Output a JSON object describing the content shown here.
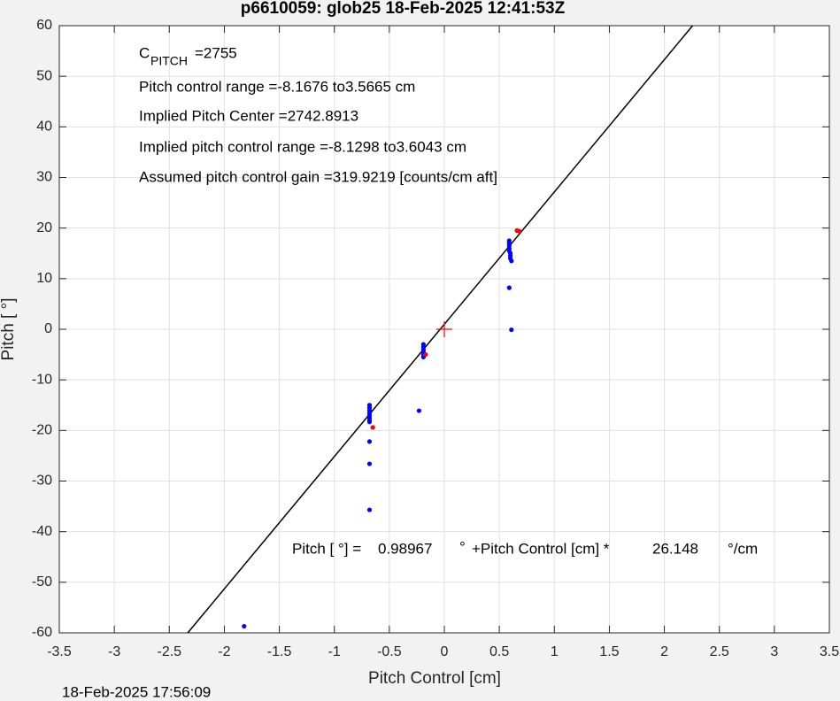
{
  "chart_data": {
    "type": "scatter",
    "title": "p6610059: glob25 18-Feb-2025 12:41:53Z",
    "x_label": "Pitch Control [cm]",
    "y_label": "Pitch [  °]",
    "timestamp": "18-Feb-2025 17:56:09",
    "xlim": [
      -3.5,
      3.5
    ],
    "ylim": [
      -60,
      60
    ],
    "xticks": [
      -3.5,
      -3,
      -2.5,
      -2,
      -1.5,
      -1,
      -0.5,
      0,
      0.5,
      1,
      1.5,
      2,
      2.5,
      3,
      3.5
    ],
    "yticks": [
      -60,
      -50,
      -40,
      -30,
      -20,
      -10,
      0,
      10,
      20,
      30,
      40,
      50,
      60
    ],
    "grid": true,
    "annotations": {
      "c_symbol": "C",
      "c_subscript": "PITCH",
      "c_value": " =2755",
      "lines": [
        "Pitch control range =-8.1676 to3.5665 cm",
        "Implied Pitch Center =2742.8913",
        "Implied pitch control range =-8.1298 to3.6043 cm",
        "Assumed pitch control gain =319.9219 [counts/cm aft]"
      ]
    },
    "fit": {
      "prefix": "Pitch [  °] =",
      "intercept": 0.98967,
      "middle_degree": "°",
      "middle": "+Pitch Control [cm] *",
      "slope": 26.148,
      "suffix": "°/cm",
      "color": "#000000"
    },
    "series": [
      {
        "color": "#0000ff",
        "marker": "dot",
        "x": [
          -0.68,
          -0.68,
          -0.68,
          -0.68,
          -0.68,
          -0.68,
          -0.68,
          -0.68,
          -0.68,
          -0.68,
          -0.68,
          -1.82,
          -0.19,
          -0.19,
          -0.19,
          -0.19,
          -0.19,
          -0.19,
          -0.23,
          0.59,
          0.59,
          0.59,
          0.59,
          0.59,
          0.6,
          0.6,
          0.6,
          0.61,
          0.59,
          0.61
        ],
        "y": [
          -15,
          -15.5,
          -16,
          -16.5,
          -17,
          -17.5,
          -18,
          -18.3,
          -22.2,
          -26.6,
          -35.7,
          -58.7,
          -3,
          -3.5,
          -4,
          -4.5,
          -5,
          -5.5,
          -16.1,
          17.5,
          17,
          16.5,
          16,
          15.5,
          15,
          14.5,
          14,
          13.5,
          8.2,
          -0.1
        ]
      },
      {
        "color": "#ff0000",
        "marker": "dot",
        "x": [
          -0.17,
          -0.65,
          0.66,
          0.68
        ],
        "y": [
          -5,
          -19.4,
          19.5,
          19.4
        ]
      },
      {
        "color": "#ff0000",
        "marker": "plus",
        "x": [
          0
        ],
        "y": [
          0
        ]
      }
    ]
  }
}
